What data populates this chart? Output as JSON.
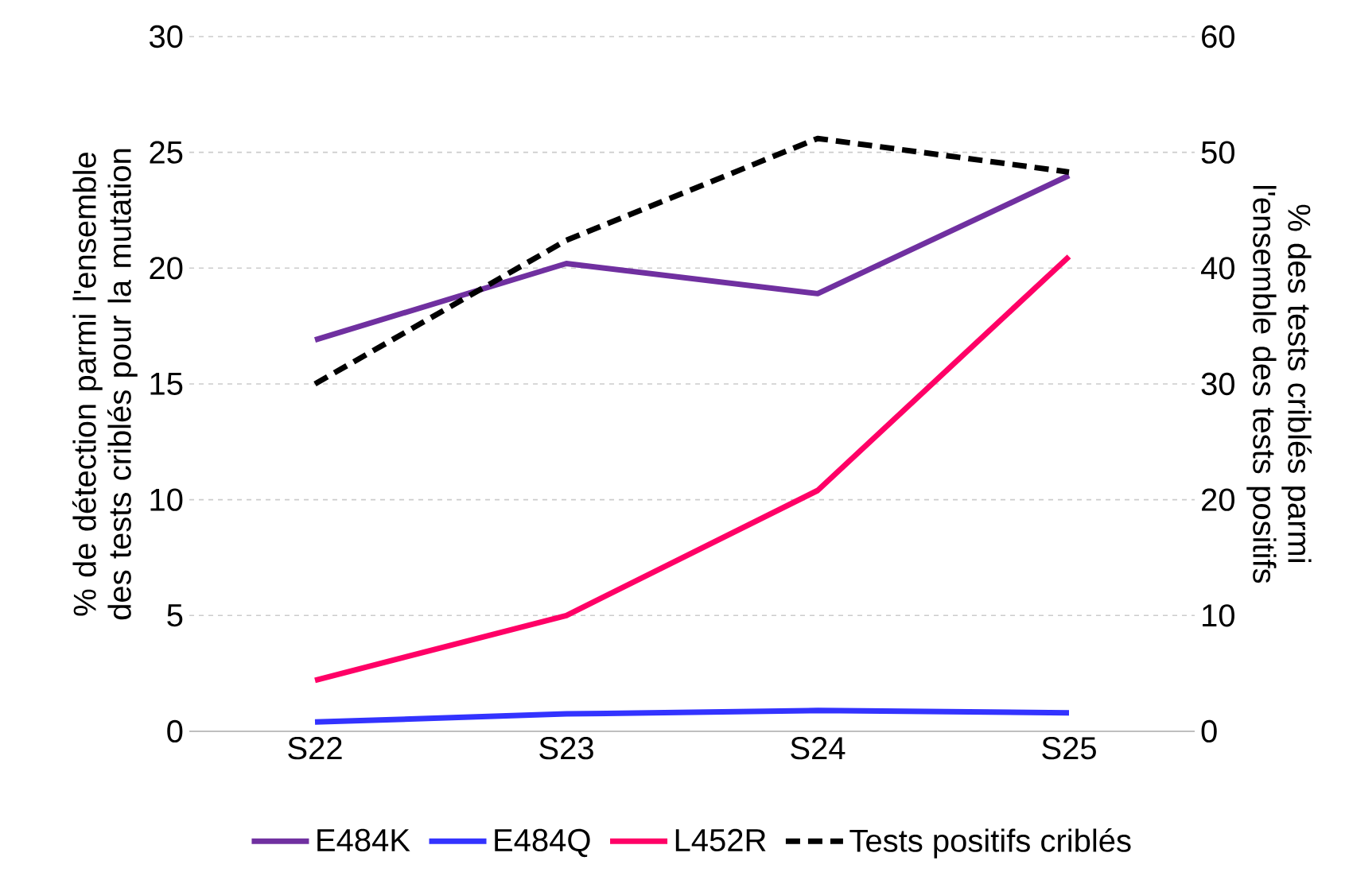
{
  "chart_data": {
    "type": "line",
    "categories": [
      "S22",
      "S23",
      "S24",
      "S25"
    ],
    "series": [
      {
        "name": "E484K",
        "color": "#7030a0",
        "values": [
          16.9,
          20.2,
          18.9,
          24.0
        ]
      },
      {
        "name": "E484Q",
        "color": "#3333ff",
        "values": [
          0.4,
          0.75,
          0.9,
          0.8
        ]
      },
      {
        "name": "L452R",
        "color": "#ff0066",
        "values": [
          2.2,
          5.0,
          10.4,
          20.5
        ]
      },
      {
        "name": "Tests positifs criblés",
        "color": "#000000",
        "values": [
          30,
          42.4,
          51.2,
          48.3
        ],
        "axis": "y2",
        "line_style": "dashed"
      }
    ],
    "ylabel": "% de détection parmi l'ensemble des tests criblés pour la mutation",
    "y2label": "% des tests  criblés parmi l'ensemble des tests positifs",
    "ylim": [
      0,
      30
    ],
    "yticks": [
      0,
      5,
      10,
      15,
      20,
      25,
      30
    ],
    "y2lim": [
      0,
      60
    ],
    "y2ticks": [
      0,
      10,
      20,
      30,
      40,
      50,
      60
    ],
    "grid": "y",
    "legend": "bottom"
  }
}
